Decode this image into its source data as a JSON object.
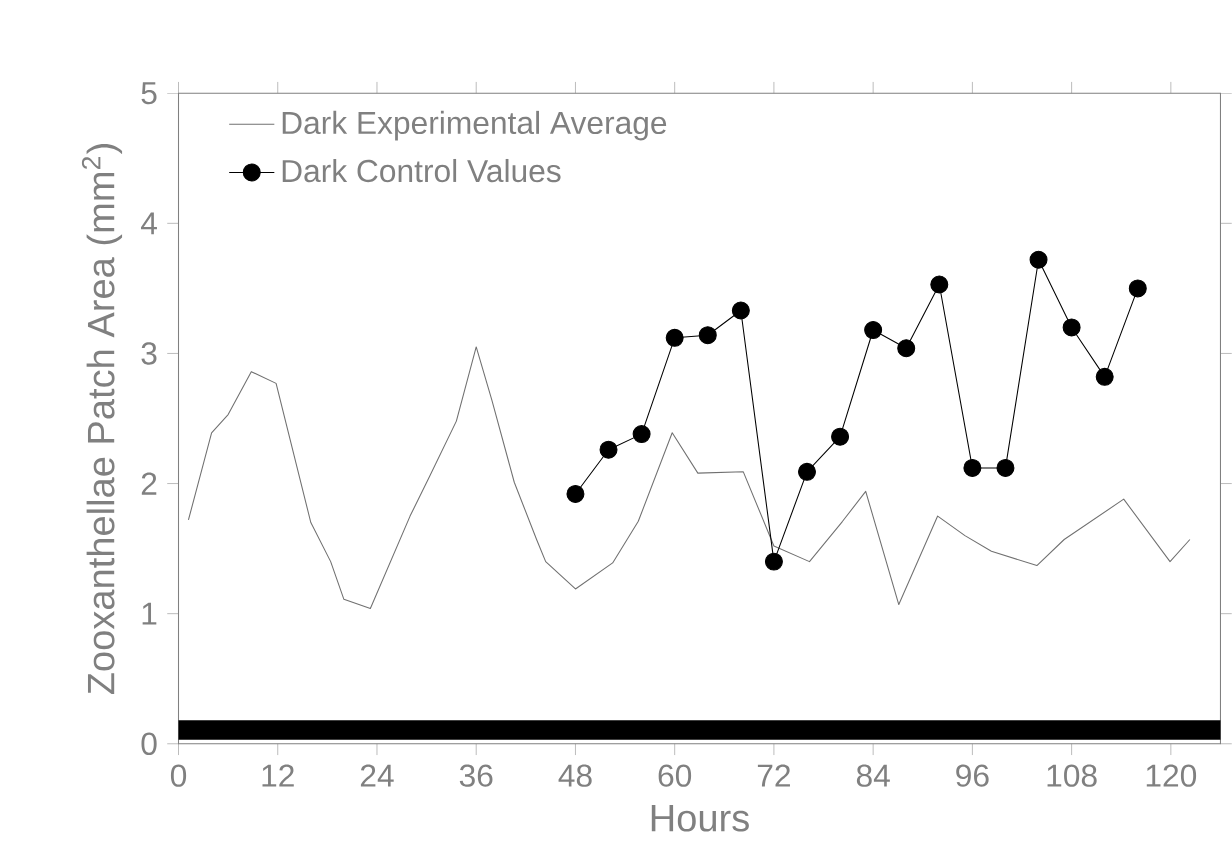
{
  "chart_data": {
    "type": "line",
    "xlabel": "Hours",
    "ylabel": "Zooxanthellae Patch Area (mm$^{2}$)",
    "xlim": [
      0,
      126
    ],
    "ylim": [
      0,
      5
    ],
    "xticks": [
      0,
      12,
      24,
      36,
      48,
      60,
      72,
      84,
      96,
      108,
      120
    ],
    "yticks": [
      0,
      1,
      2,
      3,
      4,
      5
    ],
    "legend": "top left",
    "grid": false,
    "line_style": "solid",
    "bands": [
      {
        "axis": "y",
        "from": 0.03,
        "to": 0.18,
        "color": "#000000"
      }
    ],
    "series": [
      {
        "name": "Dark Experimental Average",
        "color": "#707070",
        "marker": "none",
        "x": [
          1.2,
          4,
          6,
          8.8,
          11.8,
          16,
          18.4,
          20,
          23.2,
          28,
          30.4,
          33.6,
          36,
          37.9,
          40.6,
          43.3,
          44.4,
          48,
          52.5,
          55.6,
          59.7,
          62.8,
          68.3,
          72,
          76.3,
          80.3,
          83.1,
          87.1,
          91.8,
          95.1,
          98.3,
          103.8,
          107.1,
          114.3,
          119.9,
          122.3
        ],
        "values": [
          1.72,
          2.39,
          2.53,
          2.86,
          2.77,
          1.7,
          1.4,
          1.11,
          1.04,
          1.75,
          2.06,
          2.48,
          3.05,
          2.64,
          2.01,
          1.57,
          1.4,
          1.19,
          1.39,
          1.71,
          2.39,
          2.08,
          2.09,
          1.52,
          1.4,
          1.71,
          1.94,
          1.07,
          1.75,
          1.6,
          1.48,
          1.37,
          1.57,
          1.88,
          1.4,
          1.57
        ]
      },
      {
        "name": "Dark Control Values",
        "color": "#000000",
        "marker": "circle",
        "x": [
          48,
          52,
          56,
          60,
          64,
          68,
          72,
          76,
          80,
          84,
          88,
          92,
          96,
          100,
          104,
          108,
          112,
          116
        ],
        "values": [
          1.92,
          2.26,
          2.38,
          3.12,
          3.14,
          3.33,
          1.4,
          2.09,
          2.36,
          3.18,
          3.04,
          3.53,
          2.12,
          2.12,
          3.72,
          3.2,
          2.82,
          3.5
        ]
      }
    ]
  }
}
